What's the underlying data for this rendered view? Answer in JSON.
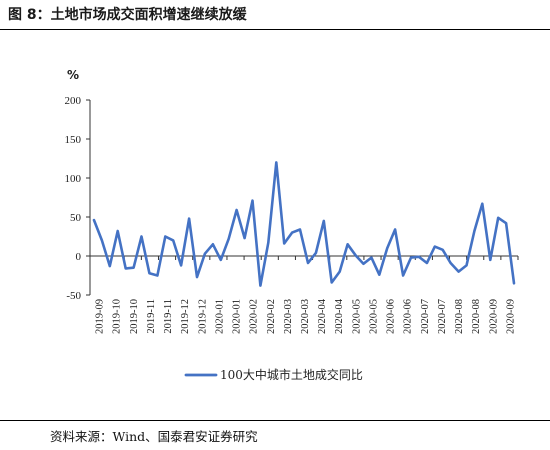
{
  "figure": {
    "title": "图 8：土地市场成交面积增速继续放缓",
    "source": "资料来源：Wind、国泰君安证券研究"
  },
  "chart_data": {
    "type": "line",
    "unit_label": "%",
    "ylim": [
      -50,
      200
    ],
    "y_ticks": [
      -50,
      0,
      50,
      100,
      150,
      200
    ],
    "grid": false,
    "legend_position": "bottom-center",
    "x_tick_labels": [
      "2019-09",
      "2019-10",
      "2019-10",
      "2019-11",
      "2019-11",
      "2019-12",
      "2019-12",
      "2020-01",
      "2020-01",
      "2020-02",
      "2020-02",
      "2020-03",
      "2020-03",
      "2020-04",
      "2020-04",
      "2020-05",
      "2020-05",
      "2020-06",
      "2020-06",
      "2020-07",
      "2020-07",
      "2020-08",
      "2020-08",
      "2020-09",
      "2020-09"
    ],
    "series": [
      {
        "name": "100大中城市土地成交同比",
        "color": "#4472c4",
        "values": [
          46,
          20,
          -13,
          32,
          -16,
          -15,
          25,
          -22,
          -25,
          25,
          20,
          -12,
          48,
          -27,
          3,
          15,
          -5,
          22,
          59,
          23,
          71,
          -38,
          17,
          120,
          16,
          30,
          34,
          -9,
          4,
          45,
          -34,
          -20,
          15,
          1,
          -10,
          -2,
          -24,
          10,
          34,
          -25,
          -2,
          -1,
          -9,
          12,
          8,
          -9,
          -20,
          -12,
          32,
          67,
          -5,
          49,
          42,
          -35
        ]
      }
    ]
  }
}
